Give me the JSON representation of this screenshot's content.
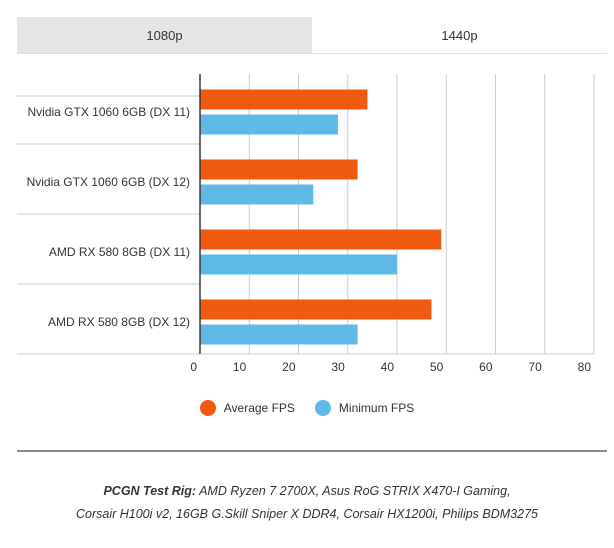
{
  "tabs": [
    {
      "label": "1080p",
      "active": false
    },
    {
      "label": "1440p",
      "active": true
    }
  ],
  "chart_data": {
    "type": "bar",
    "orientation": "horizontal",
    "categories": [
      "Nvidia GTX 1060 6GB (DX 11)",
      "Nvidia GTX 1060 6GB (DX 12)",
      "AMD RX 580 8GB (DX 11)",
      "AMD RX 580 8GB (DX 12)"
    ],
    "series": [
      {
        "name": "Average FPS",
        "color": "#ef5a0e",
        "values": [
          34,
          32,
          49,
          47
        ]
      },
      {
        "name": "Minimum FPS",
        "color": "#5fb9e6",
        "values": [
          28,
          23,
          40,
          32
        ]
      }
    ],
    "xlim": [
      0,
      80
    ],
    "xticks": [
      0,
      10,
      20,
      30,
      40,
      50,
      60,
      70,
      80
    ],
    "grid": true,
    "legend": "bottom"
  },
  "footer": {
    "label": "PCGN Test Rig:",
    "line1": "AMD Ryzen 7 2700X, Asus RoG STRIX X470-I Gaming,",
    "line2": "Corsair H100i v2, 16GB G.Skill Sniper X DDR4, Corsair HX1200i, Philips BDM3275"
  }
}
